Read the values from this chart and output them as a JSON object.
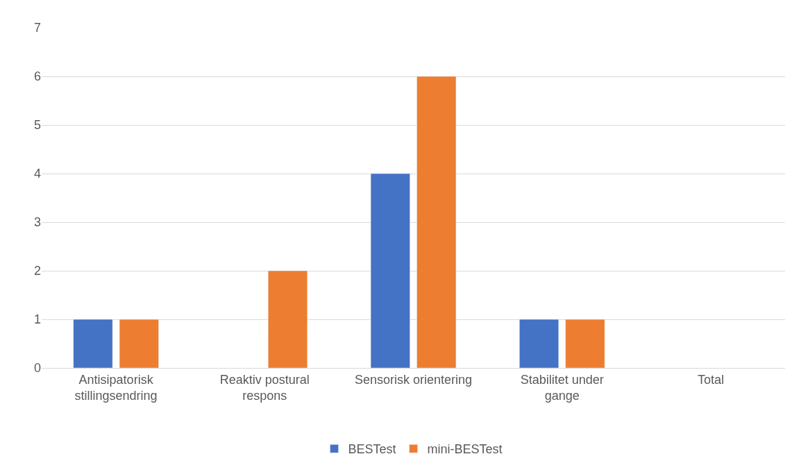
{
  "chart_data": {
    "type": "bar",
    "categories": [
      "Antisipatorisk stillingsendring",
      "Reaktiv postural respons",
      "Sensorisk orientering",
      "Stabilitet under gange",
      "Total"
    ],
    "series": [
      {
        "name": "BESTest",
        "color": "#4472c4",
        "values": [
          1,
          null,
          4,
          1,
          null
        ]
      },
      {
        "name": "mini-BESTest",
        "color": "#ed7d31",
        "values": [
          1,
          2,
          6,
          1,
          null
        ]
      }
    ],
    "ylim": [
      0,
      7
    ],
    "yticks": [
      0,
      1,
      2,
      3,
      4,
      5,
      6,
      7
    ],
    "grid": "y",
    "legend": "bottom"
  }
}
